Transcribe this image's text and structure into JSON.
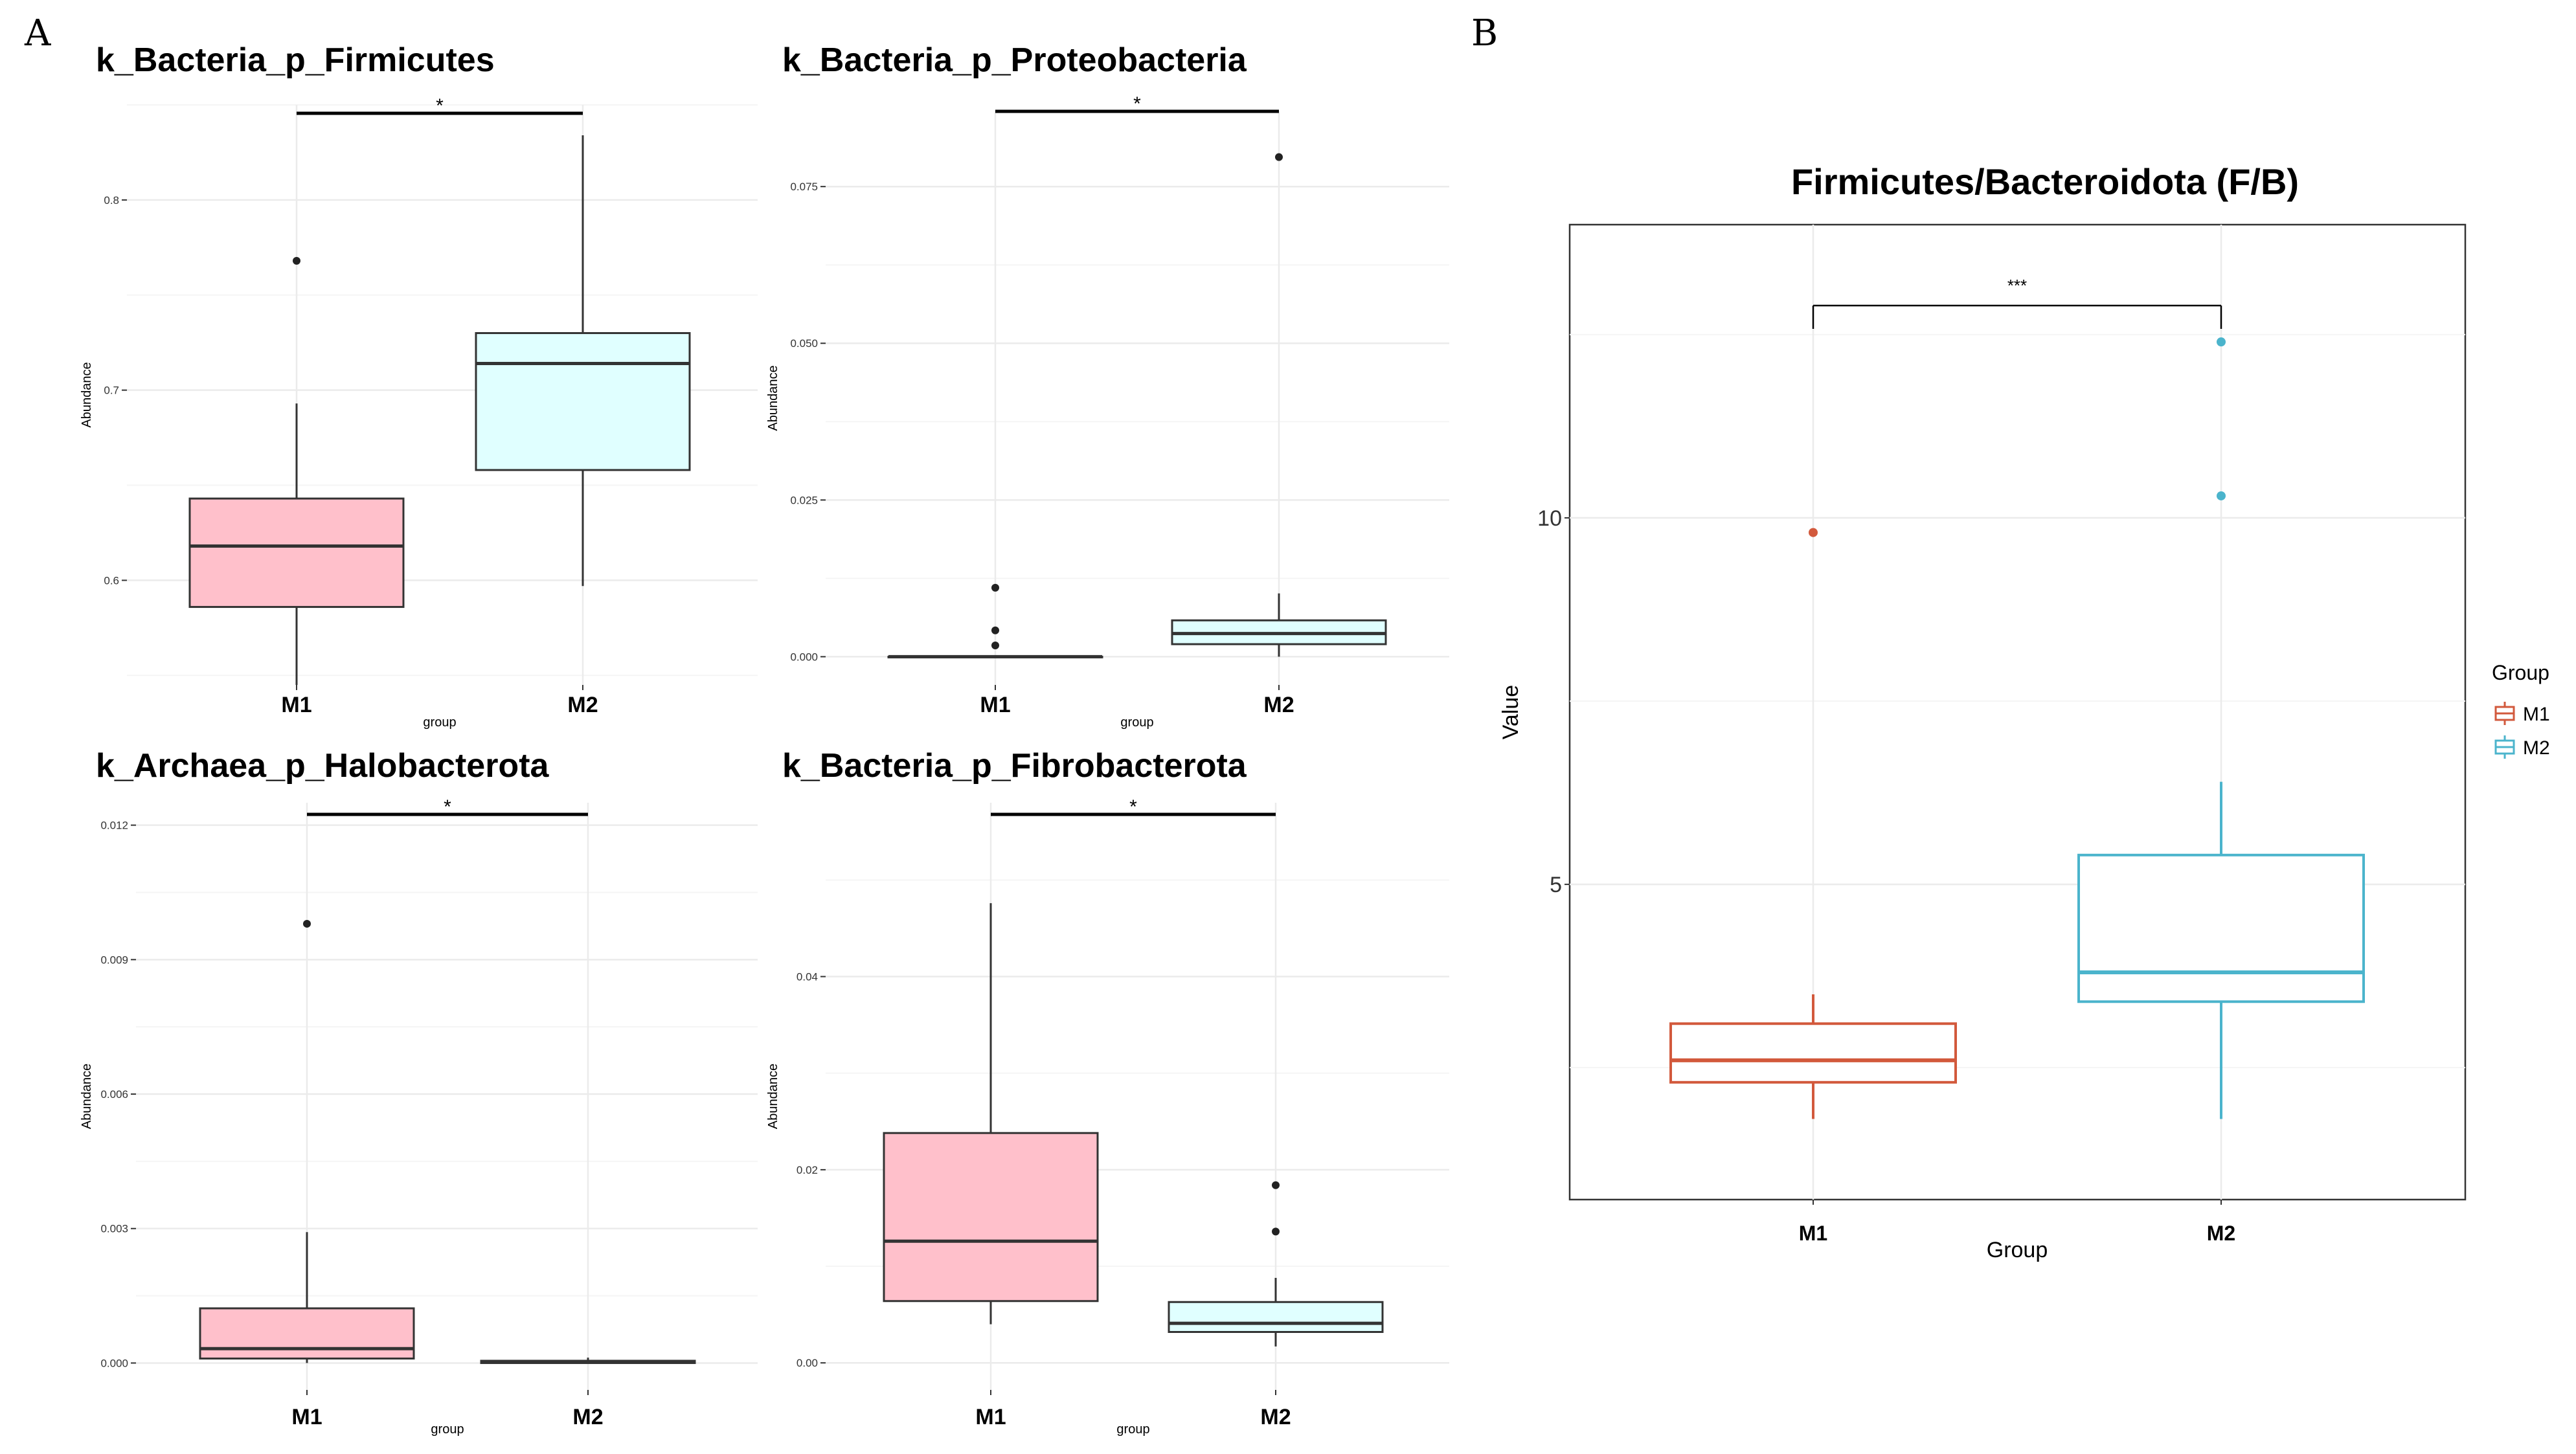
{
  "figure": {
    "panel_a_label": "A",
    "panel_b_label": "B",
    "colors": {
      "m1_fill": "#ffc0cb",
      "m2_fill": "#e0ffff",
      "box_line": "#333333",
      "m1_outline": "#d2593c",
      "m2_outline": "#4bb4cc",
      "grid_major": "#ebebeb",
      "grid_minor": "#f5f5f5"
    }
  },
  "chart_data": [
    {
      "id": "firmicutes",
      "type": "box",
      "title": "k_Bacteria_p_Firmicutes",
      "xlabel": "group",
      "ylabel": "Abundance",
      "categories": [
        "M1",
        "M2"
      ],
      "ylim": [
        0.545,
        0.85
      ],
      "yticks": [
        0.6,
        0.7,
        0.8
      ],
      "ytick_labels": [
        "0.6",
        "0.7",
        "0.8"
      ],
      "boxes": [
        {
          "group": "M1",
          "min": 0.545,
          "q1": 0.586,
          "median": 0.618,
          "q3": 0.643,
          "max": 0.693,
          "outliers": [
            0.768
          ]
        },
        {
          "group": "M2",
          "min": 0.597,
          "q1": 0.658,
          "median": 0.714,
          "q3": 0.73,
          "max": 0.834,
          "outliers": []
        }
      ],
      "significance": "*"
    },
    {
      "id": "proteobacteria",
      "type": "box",
      "title": "k_Bacteria_p_Proteobacteria",
      "xlabel": "group",
      "ylabel": "Abundance",
      "categories": [
        "M1",
        "M2"
      ],
      "ylim": [
        -0.0045,
        0.087
      ],
      "yticks": [
        0.0,
        0.025,
        0.05,
        0.075
      ],
      "ytick_labels": [
        "0.000",
        "0.025",
        "0.050",
        "0.075"
      ],
      "boxes": [
        {
          "group": "M1",
          "min": 0.0,
          "q1": 0.0,
          "median": 0.0,
          "q3": 0.0,
          "max": 0.0,
          "outliers": [
            0.011,
            0.0042,
            0.0018
          ]
        },
        {
          "group": "M2",
          "min": 0.0,
          "q1": 0.002,
          "median": 0.0037,
          "q3": 0.0058,
          "max": 0.0101,
          "outliers": [
            0.0797
          ]
        }
      ],
      "significance": "*"
    },
    {
      "id": "halobacterota",
      "type": "box",
      "title": "k_Archaea_p_Halobacterota",
      "xlabel": "group",
      "ylabel": "Abundance",
      "categories": [
        "M1",
        "M2"
      ],
      "ylim": [
        -0.0006,
        0.0125
      ],
      "yticks": [
        0.0,
        0.003,
        0.006,
        0.009,
        0.012
      ],
      "ytick_labels": [
        "0.000",
        "0.003",
        "0.006",
        "0.009",
        "0.012"
      ],
      "boxes": [
        {
          "group": "M1",
          "min": 0.0,
          "q1": 0.0001,
          "median": 0.00032,
          "q3": 0.00122,
          "max": 0.00292,
          "outliers": [
            0.0098
          ]
        },
        {
          "group": "M2",
          "min": 0.0,
          "q1": 0.0,
          "median": 2e-05,
          "q3": 5e-05,
          "max": 0.00012,
          "outliers": []
        }
      ],
      "significance": "*"
    },
    {
      "id": "fibrobacterota",
      "type": "box",
      "title": "k_Bacteria_p_Fibrobacterota",
      "xlabel": "group",
      "ylabel": "Abundance",
      "categories": [
        "M1",
        "M2"
      ],
      "ylim": [
        -0.0028,
        0.058
      ],
      "yticks": [
        0.0,
        0.02,
        0.04
      ],
      "ytick_labels": [
        "0.00",
        "0.02",
        "0.04"
      ],
      "boxes": [
        {
          "group": "M1",
          "min": 0.004,
          "q1": 0.0064,
          "median": 0.0126,
          "q3": 0.0238,
          "max": 0.0476,
          "outliers": []
        },
        {
          "group": "M2",
          "min": 0.0017,
          "q1": 0.0032,
          "median": 0.0041,
          "q3": 0.0063,
          "max": 0.0088,
          "outliers": [
            0.0184,
            0.0136
          ]
        }
      ],
      "significance": "*"
    },
    {
      "id": "fb_ratio",
      "type": "box",
      "title": "Firmicutes/Bacteroidota (F/B)",
      "xlabel": "Group",
      "ylabel": "Value",
      "categories": [
        "M1",
        "M2"
      ],
      "ylim": [
        0.7,
        14.0
      ],
      "yticks": [
        5,
        10
      ],
      "ytick_labels": [
        "5",
        "10"
      ],
      "boxes": [
        {
          "group": "M1",
          "min": 1.8,
          "q1": 2.3,
          "median": 2.6,
          "q3": 3.1,
          "max": 3.5,
          "outliers": [
            9.8
          ]
        },
        {
          "group": "M2",
          "min": 1.8,
          "q1": 3.4,
          "median": 3.8,
          "q3": 5.4,
          "max": 6.4,
          "outliers": [
            12.4,
            10.3
          ]
        }
      ],
      "significance": "***",
      "legend": {
        "title": "Group",
        "entries": [
          "M1",
          "M2"
        ],
        "position": "right"
      }
    }
  ]
}
